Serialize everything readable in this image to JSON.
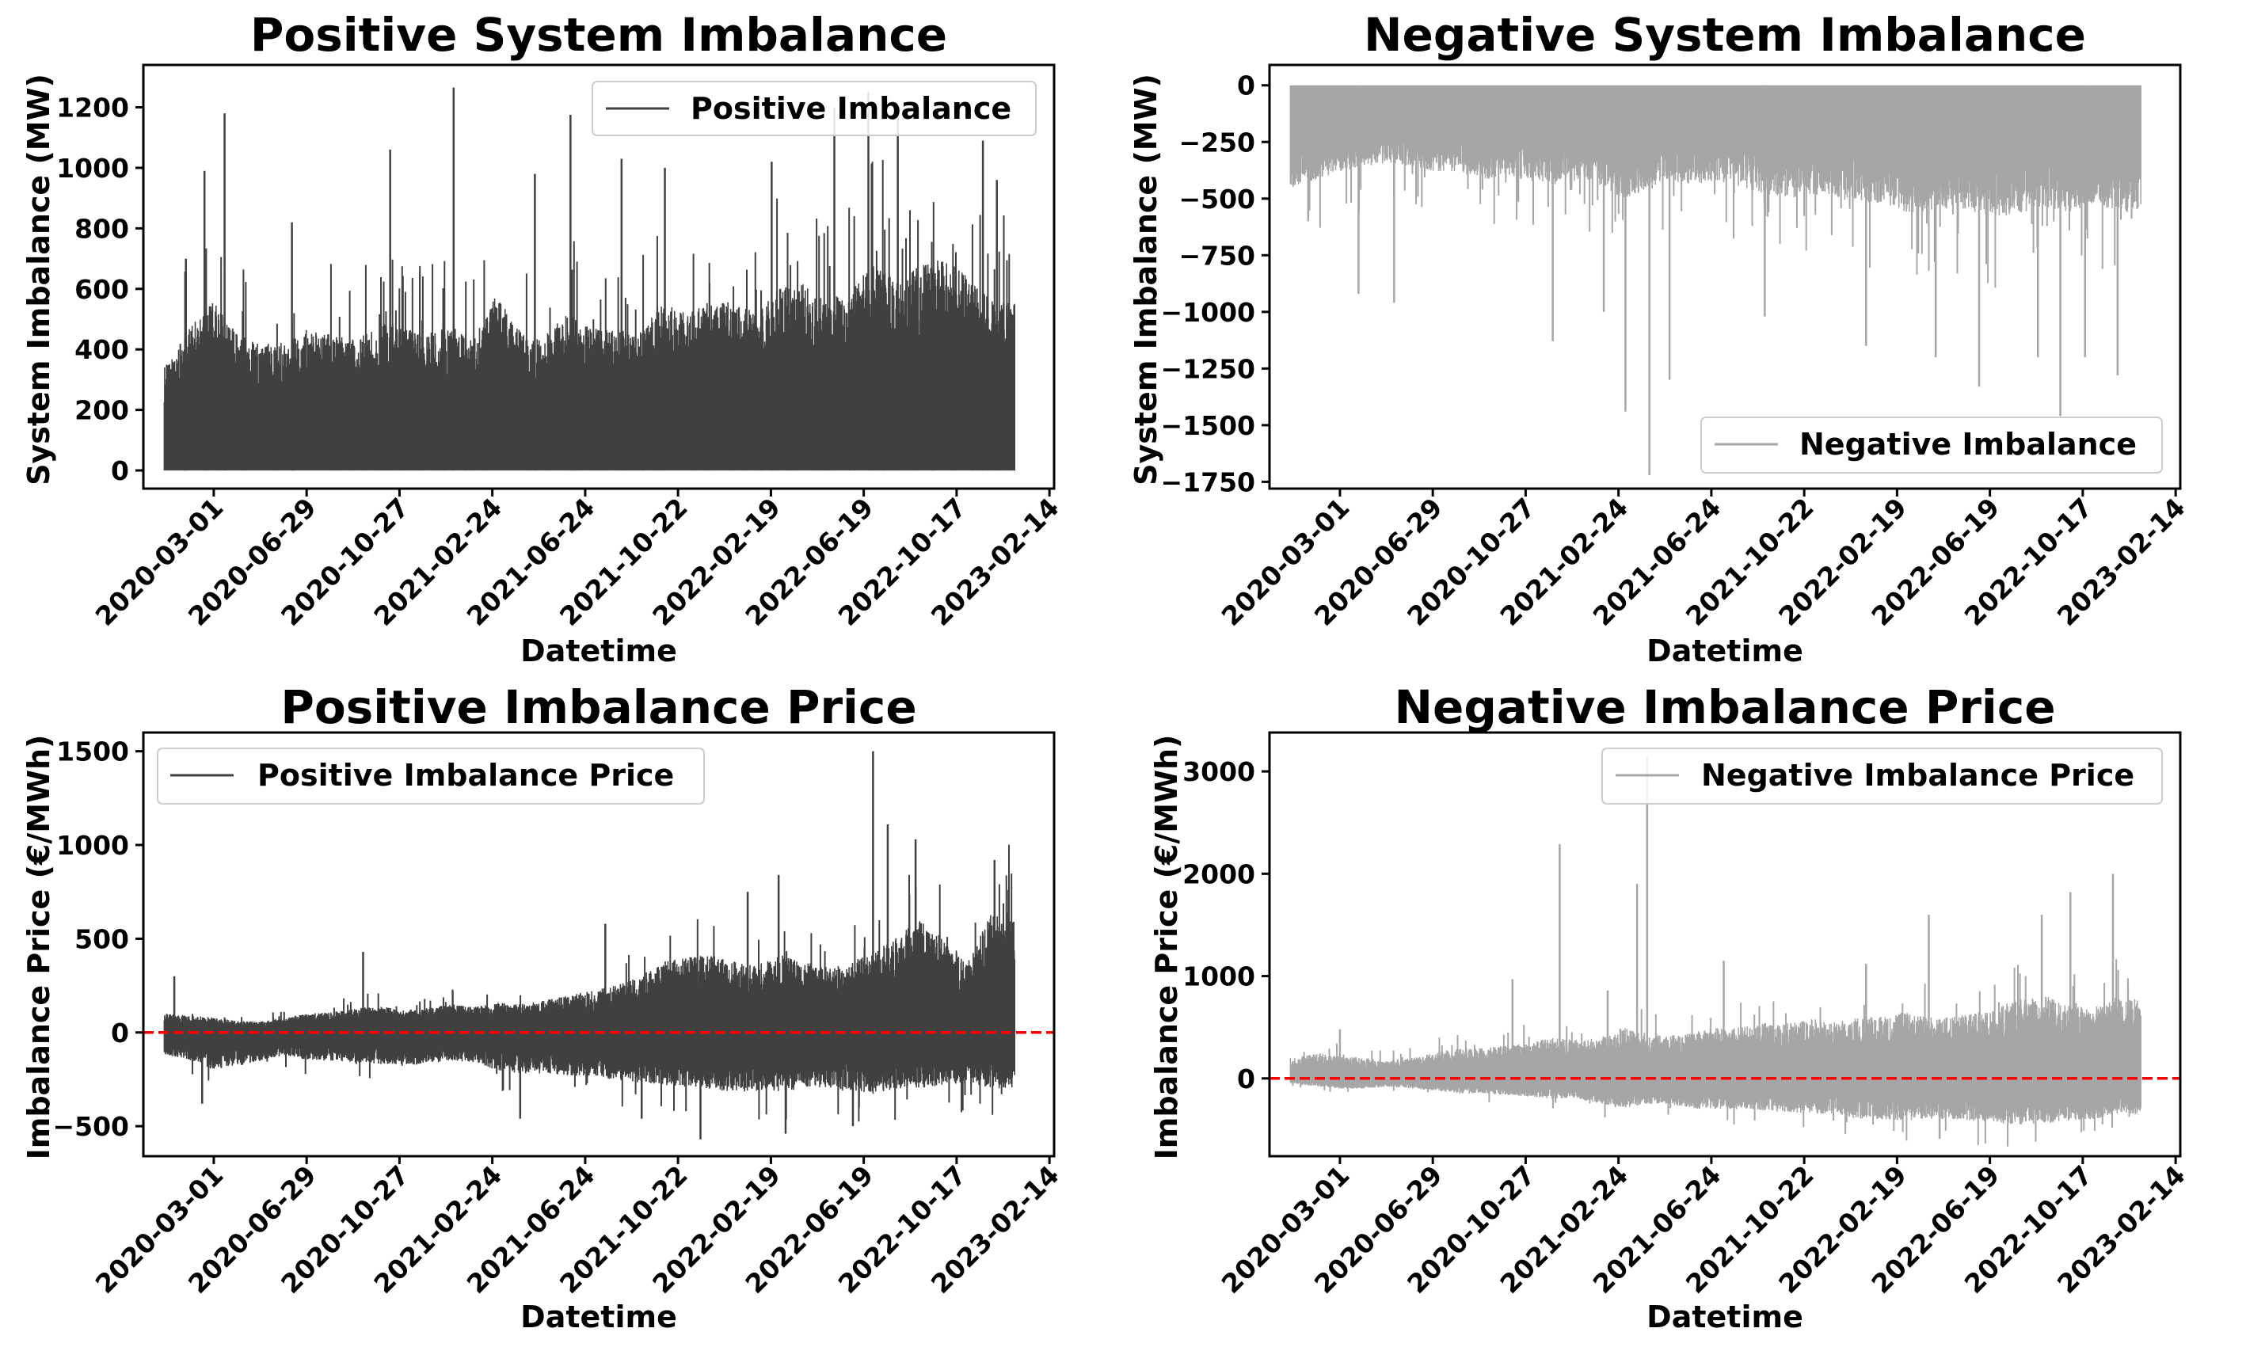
{
  "chart_data": [
    {
      "type": "line",
      "title": "Positive System Imbalance",
      "xlabel": "Datetime",
      "ylabel": "System Imbalance (MW)",
      "xlim": [
        "2019-12-01",
        "2023-02-20"
      ],
      "ylim": [
        -60,
        1340
      ],
      "yticks": [
        0,
        200,
        400,
        600,
        800,
        1000,
        1200
      ],
      "xticks": [
        "2020-03-01",
        "2020-06-29",
        "2020-10-27",
        "2021-02-24",
        "2021-06-24",
        "2021-10-22",
        "2022-02-19",
        "2022-06-19",
        "2022-10-17",
        "2023-02-14"
      ],
      "color": "#404040",
      "legend_position": "upper right",
      "reference_line": null,
      "series": [
        {
          "name": "Positive Imbalance",
          "x": [
            "2020-01-01",
            "2020-02-01",
            "2020-03-01",
            "2020-04-01",
            "2020-05-01",
            "2020-06-01",
            "2020-07-01",
            "2020-08-01",
            "2020-09-01",
            "2020-10-01",
            "2020-11-01",
            "2020-12-01",
            "2021-01-01",
            "2021-02-01",
            "2021-03-01",
            "2021-04-01",
            "2021-05-01",
            "2021-06-01",
            "2021-07-01",
            "2021-08-01",
            "2021-09-01",
            "2021-10-01",
            "2021-11-01",
            "2021-12-01",
            "2022-01-01",
            "2022-02-01",
            "2022-03-01",
            "2022-04-01",
            "2022-05-01",
            "2022-06-01",
            "2022-07-01",
            "2022-08-01",
            "2022-09-01",
            "2022-10-01",
            "2022-11-01",
            "2022-12-01"
          ],
          "low": [
            0,
            0,
            0,
            0,
            0,
            0,
            0,
            0,
            0,
            0,
            0,
            0,
            0,
            0,
            0,
            0,
            0,
            0,
            0,
            0,
            0,
            0,
            0,
            0,
            0,
            0,
            0,
            0,
            0,
            0,
            0,
            0,
            0,
            0,
            0,
            0
          ],
          "typical_high": [
            350,
            480,
            560,
            450,
            420,
            430,
            470,
            450,
            430,
            490,
            470,
            450,
            480,
            440,
            580,
            460,
            440,
            520,
            470,
            470,
            450,
            560,
            520,
            560,
            560,
            520,
            600,
            620,
            560,
            600,
            680,
            640,
            680,
            700,
            640,
            560
          ],
          "spikes": [
            {
              "x": "2020-01-25",
              "y": 700
            },
            {
              "x": "2020-02-18",
              "y": 990
            },
            {
              "x": "2020-03-15",
              "y": 1180
            },
            {
              "x": "2020-06-10",
              "y": 820
            },
            {
              "x": "2020-10-15",
              "y": 1060
            },
            {
              "x": "2021-01-05",
              "y": 1265
            },
            {
              "x": "2021-04-20",
              "y": 980
            },
            {
              "x": "2021-06-05",
              "y": 1175
            },
            {
              "x": "2021-08-10",
              "y": 1030
            },
            {
              "x": "2021-10-05",
              "y": 1000
            },
            {
              "x": "2022-02-20",
              "y": 1020
            },
            {
              "x": "2022-05-12",
              "y": 1200
            },
            {
              "x": "2022-06-25",
              "y": 1250
            },
            {
              "x": "2022-08-02",
              "y": 1185
            },
            {
              "x": "2022-11-20",
              "y": 1090
            },
            {
              "x": "2022-12-08",
              "y": 960
            }
          ]
        }
      ]
    },
    {
      "type": "line",
      "title": "Negative System Imbalance",
      "xlabel": "Datetime",
      "ylabel": "System Imbalance (MW)",
      "xlim": [
        "2019-12-01",
        "2023-02-20"
      ],
      "ylim": [
        -1780,
        90
      ],
      "yticks": [
        0,
        -250,
        -500,
        -750,
        -1000,
        -1250,
        -1500,
        -1750
      ],
      "ytick_labels": [
        "0",
        "−250",
        "−500",
        "−750",
        "−1000",
        "−1250",
        "−1500",
        "−1750"
      ],
      "xticks": [
        "2020-03-01",
        "2020-06-29",
        "2020-10-27",
        "2021-02-24",
        "2021-06-24",
        "2021-10-22",
        "2022-02-19",
        "2022-06-19",
        "2022-10-17",
        "2023-02-14"
      ],
      "color": "#a6a6a6",
      "legend_position": "lower right",
      "reference_line": null,
      "series": [
        {
          "name": "Negative Imbalance",
          "x": [
            "2020-01-01",
            "2020-02-01",
            "2020-03-01",
            "2020-04-01",
            "2020-05-01",
            "2020-06-01",
            "2020-07-01",
            "2020-08-01",
            "2020-09-01",
            "2020-10-01",
            "2020-11-01",
            "2020-12-01",
            "2021-01-01",
            "2021-02-01",
            "2021-03-01",
            "2021-04-01",
            "2021-05-01",
            "2021-06-01",
            "2021-07-01",
            "2021-08-01",
            "2021-09-01",
            "2021-10-01",
            "2021-11-01",
            "2021-12-01",
            "2022-01-01",
            "2022-02-01",
            "2022-03-01",
            "2022-04-01",
            "2022-05-01",
            "2022-06-01",
            "2022-07-01",
            "2022-08-01",
            "2022-09-01",
            "2022-10-01",
            "2022-11-01",
            "2022-12-01"
          ],
          "high": [
            0,
            0,
            0,
            0,
            0,
            0,
            0,
            0,
            0,
            0,
            0,
            0,
            0,
            0,
            0,
            0,
            0,
            0,
            0,
            0,
            0,
            0,
            0,
            0,
            0,
            0,
            0,
            0,
            0,
            0,
            0,
            0,
            0,
            0,
            0,
            0
          ],
          "typical_low": [
            -450,
            -420,
            -380,
            -360,
            -340,
            -360,
            -380,
            -380,
            -420,
            -400,
            -420,
            -440,
            -420,
            -440,
            -500,
            -470,
            -420,
            -440,
            -420,
            -450,
            -480,
            -500,
            -480,
            -500,
            -520,
            -520,
            -560,
            -560,
            -540,
            -560,
            -580,
            -560,
            -540,
            -560,
            -520,
            -560
          ],
          "spikes": [
            {
              "x": "2020-01-20",
              "y": -600
            },
            {
              "x": "2020-03-25",
              "y": -920
            },
            {
              "x": "2020-05-10",
              "y": -960
            },
            {
              "x": "2020-12-01",
              "y": -1130
            },
            {
              "x": "2021-02-05",
              "y": -1000
            },
            {
              "x": "2021-03-05",
              "y": -1440
            },
            {
              "x": "2021-04-05",
              "y": -1720
            },
            {
              "x": "2021-05-01",
              "y": -1300
            },
            {
              "x": "2021-09-01",
              "y": -1020
            },
            {
              "x": "2022-01-10",
              "y": -1150
            },
            {
              "x": "2022-04-10",
              "y": -1200
            },
            {
              "x": "2022-06-05",
              "y": -1330
            },
            {
              "x": "2022-08-20",
              "y": -1200
            },
            {
              "x": "2022-09-18",
              "y": -1460
            },
            {
              "x": "2022-10-20",
              "y": -1200
            },
            {
              "x": "2022-12-01",
              "y": -1280
            }
          ]
        }
      ]
    },
    {
      "type": "line",
      "title": "Positive Imbalance Price",
      "xlabel": "Datetime",
      "ylabel": "Imbalance Price (€/MWh)",
      "xlim": [
        "2019-12-01",
        "2023-02-20"
      ],
      "ylim": [
        -660,
        1600
      ],
      "yticks": [
        -500,
        0,
        500,
        1000,
        1500
      ],
      "ytick_labels": [
        "−500",
        "0",
        "500",
        "1000",
        "1500"
      ],
      "xticks": [
        "2020-03-01",
        "2020-06-29",
        "2020-10-27",
        "2021-02-24",
        "2021-06-24",
        "2021-10-22",
        "2022-02-19",
        "2022-06-19",
        "2022-10-17",
        "2023-02-14"
      ],
      "color": "#404040",
      "legend_position": "upper left",
      "reference_line": {
        "y": 0,
        "color": "#ff0000",
        "style": "dashed"
      },
      "series": [
        {
          "name": "Positive Imbalance Price",
          "x": [
            "2020-01-01",
            "2020-02-01",
            "2020-03-01",
            "2020-04-01",
            "2020-05-01",
            "2020-06-01",
            "2020-07-01",
            "2020-08-01",
            "2020-09-01",
            "2020-10-01",
            "2020-11-01",
            "2020-12-01",
            "2021-01-01",
            "2021-02-01",
            "2021-03-01",
            "2021-04-01",
            "2021-05-01",
            "2021-06-01",
            "2021-07-01",
            "2021-08-01",
            "2021-09-01",
            "2021-10-01",
            "2021-11-01",
            "2021-12-01",
            "2022-01-01",
            "2022-02-01",
            "2022-03-01",
            "2022-04-01",
            "2022-05-01",
            "2022-06-01",
            "2022-07-01",
            "2022-08-01",
            "2022-09-01",
            "2022-10-01",
            "2022-11-01",
            "2022-12-01"
          ],
          "high": [
            100,
            90,
            80,
            60,
            60,
            80,
            100,
            110,
            130,
            140,
            120,
            130,
            150,
            140,
            160,
            150,
            170,
            200,
            220,
            250,
            300,
            380,
            400,
            420,
            380,
            360,
            420,
            380,
            350,
            380,
            420,
            520,
            600,
            500,
            380,
            650
          ],
          "low": [
            -120,
            -150,
            -200,
            -180,
            -150,
            -120,
            -150,
            -150,
            -160,
            -170,
            -180,
            -170,
            -150,
            -160,
            -200,
            -220,
            -220,
            -230,
            -240,
            -250,
            -270,
            -280,
            -290,
            -300,
            -320,
            -320,
            -320,
            -300,
            -300,
            -320,
            -330,
            -300,
            -300,
            -280,
            -280,
            -300
          ],
          "spikes": [
            {
              "x": "2020-01-10",
              "y": 300
            },
            {
              "x": "2020-02-15",
              "y": -380
            },
            {
              "x": "2020-09-10",
              "y": 430
            },
            {
              "x": "2021-04-01",
              "y": -460
            },
            {
              "x": "2021-07-20",
              "y": 580
            },
            {
              "x": "2021-09-05",
              "y": -460
            },
            {
              "x": "2021-11-20",
              "y": -570
            },
            {
              "x": "2022-01-20",
              "y": 750
            },
            {
              "x": "2022-03-01",
              "y": 840
            },
            {
              "x": "2022-03-10",
              "y": -540
            },
            {
              "x": "2022-06-05",
              "y": -500
            },
            {
              "x": "2022-07-01",
              "y": 1500
            },
            {
              "x": "2022-07-20",
              "y": 1110
            },
            {
              "x": "2022-08-25",
              "y": 1030
            },
            {
              "x": "2022-12-05",
              "y": 920
            }
          ]
        }
      ]
    },
    {
      "type": "line",
      "title": "Negative Imbalance Price",
      "xlabel": "Datetime",
      "ylabel": "Imbalance Price (€/MWh)",
      "xlim": [
        "2019-12-01",
        "2023-02-20"
      ],
      "ylim": [
        -760,
        3380
      ],
      "yticks": [
        0,
        1000,
        2000,
        3000
      ],
      "xticks": [
        "2020-03-01",
        "2020-06-29",
        "2020-10-27",
        "2021-02-24",
        "2021-06-24",
        "2021-10-22",
        "2022-02-19",
        "2022-06-19",
        "2022-10-17",
        "2023-02-14"
      ],
      "color": "#a6a6a6",
      "legend_position": "upper right",
      "reference_line": {
        "y": 0,
        "color": "#ff0000",
        "style": "dashed"
      },
      "series": [
        {
          "name": "Negative Imbalance Price",
          "x": [
            "2020-01-01",
            "2020-02-01",
            "2020-03-01",
            "2020-04-01",
            "2020-05-01",
            "2020-06-01",
            "2020-07-01",
            "2020-08-01",
            "2020-09-01",
            "2020-10-01",
            "2020-11-01",
            "2020-12-01",
            "2021-01-01",
            "2021-02-01",
            "2021-03-01",
            "2021-04-01",
            "2021-05-01",
            "2021-06-01",
            "2021-07-01",
            "2021-08-01",
            "2021-09-01",
            "2021-10-01",
            "2021-11-01",
            "2021-12-01",
            "2022-01-01",
            "2022-02-01",
            "2022-03-01",
            "2022-04-01",
            "2022-05-01",
            "2022-06-01",
            "2022-07-01",
            "2022-08-01",
            "2022-09-01",
            "2022-10-01",
            "2022-11-01",
            "2022-12-01"
          ],
          "high": [
            200,
            250,
            220,
            200,
            180,
            200,
            250,
            300,
            300,
            320,
            350,
            400,
            380,
            400,
            500,
            450,
            420,
            450,
            500,
            500,
            550,
            550,
            600,
            550,
            600,
            600,
            650,
            600,
            600,
            650,
            700,
            800,
            800,
            700,
            700,
            800
          ],
          "low": [
            -50,
            -80,
            -100,
            -100,
            -80,
            -100,
            -120,
            -150,
            -150,
            -160,
            -180,
            -200,
            -200,
            -250,
            -300,
            -250,
            -250,
            -300,
            -300,
            -300,
            -320,
            -330,
            -350,
            -350,
            -400,
            -400,
            -420,
            -400,
            -400,
            -420,
            -440,
            -450,
            -450,
            -420,
            -400,
            -350
          ],
          "spikes": [
            {
              "x": "2020-03-01",
              "y": 480
            },
            {
              "x": "2020-10-10",
              "y": 970
            },
            {
              "x": "2020-12-10",
              "y": 2290
            },
            {
              "x": "2021-02-10",
              "y": 860
            },
            {
              "x": "2021-03-20",
              "y": 1900
            },
            {
              "x": "2021-04-02",
              "y": 3150
            },
            {
              "x": "2021-07-10",
              "y": 1150
            },
            {
              "x": "2022-01-10",
              "y": 1120
            },
            {
              "x": "2022-04-01",
              "y": 1600
            },
            {
              "x": "2022-04-15",
              "y": -590
            },
            {
              "x": "2022-08-25",
              "y": 1600
            },
            {
              "x": "2022-10-01",
              "y": 1820
            },
            {
              "x": "2022-11-25",
              "y": 2000
            }
          ]
        }
      ]
    }
  ]
}
